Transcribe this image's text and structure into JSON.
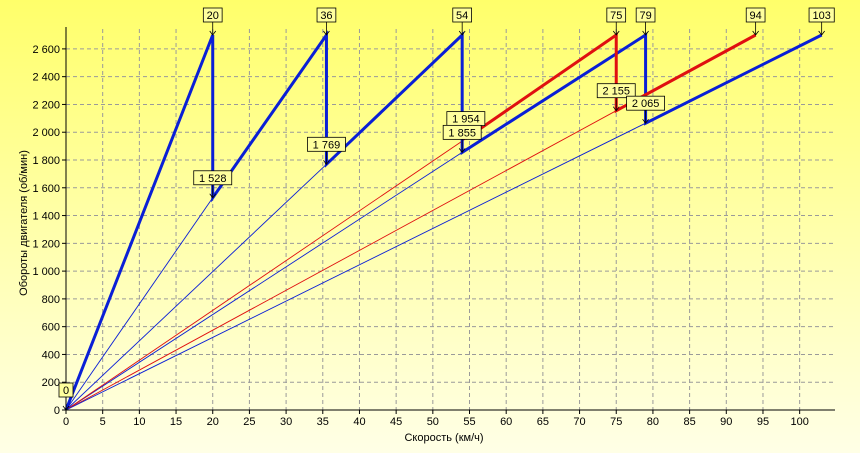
{
  "chart_data": {
    "type": "line",
    "xlabel": "Скорость (км/ч)",
    "ylabel": "Обороты двигателя (об/мин)",
    "xlim": [
      0,
      104
    ],
    "ylim": [
      0,
      2700
    ],
    "x_ticks": [
      "0",
      "5",
      "10",
      "15",
      "20",
      "25",
      "30",
      "35",
      "40",
      "45",
      "50",
      "55",
      "60",
      "65",
      "70",
      "75",
      "80",
      "85",
      "90",
      "95",
      "100"
    ],
    "y_ticks": [
      "0",
      "200",
      "400",
      "600",
      "800",
      "1 000",
      "1 200",
      "1 400",
      "1 600",
      "1 800",
      "2 000",
      "2 200",
      "2 400",
      "2 600"
    ],
    "grid": true,
    "colors": {
      "blue": "#0a1fd6",
      "red": "#e01010",
      "grid": "#9a9a9a",
      "callout_fill": "#ffff9e"
    },
    "thin_lines": [
      {
        "color": "blue",
        "points": [
          [
            0,
            0
          ],
          [
            20,
            1528
          ]
        ]
      },
      {
        "color": "blue",
        "points": [
          [
            0,
            0
          ],
          [
            35.5,
            1769
          ]
        ]
      },
      {
        "color": "blue",
        "points": [
          [
            0,
            0
          ],
          [
            54,
            1855
          ]
        ]
      },
      {
        "color": "red",
        "points": [
          [
            0,
            0
          ],
          [
            54.5,
            1954
          ]
        ]
      },
      {
        "color": "red",
        "points": [
          [
            0,
            0
          ],
          [
            75,
            2155
          ]
        ]
      },
      {
        "color": "blue",
        "points": [
          [
            0,
            0
          ],
          [
            79,
            2065
          ]
        ]
      }
    ],
    "series": [
      {
        "color": "blue",
        "values": [
          [
            0,
            0
          ],
          [
            20,
            2700
          ],
          [
            20,
            1528
          ],
          [
            35.5,
            2700
          ],
          [
            35.5,
            1769
          ],
          [
            54,
            2700
          ],
          [
            54,
            1855
          ],
          [
            79,
            2700
          ],
          [
            79,
            2065
          ],
          [
            103,
            2700
          ]
        ]
      },
      {
        "color": "red",
        "values": [
          [
            54.5,
            1954
          ],
          [
            75,
            2700
          ],
          [
            75,
            2155
          ],
          [
            94,
            2700
          ]
        ]
      }
    ],
    "callouts": [
      {
        "text": "0",
        "at": [
          0,
          0
        ],
        "anchor": "above"
      },
      {
        "text": "20",
        "at": [
          20,
          2700
        ],
        "anchor": "above"
      },
      {
        "text": "36",
        "at": [
          35.5,
          2700
        ],
        "anchor": "above"
      },
      {
        "text": "54",
        "at": [
          54,
          2700
        ],
        "anchor": "above"
      },
      {
        "text": "75",
        "at": [
          75,
          2700
        ],
        "anchor": "above"
      },
      {
        "text": "79",
        "at": [
          79,
          2700
        ],
        "anchor": "above"
      },
      {
        "text": "94",
        "at": [
          94,
          2700
        ],
        "anchor": "above"
      },
      {
        "text": "103",
        "at": [
          103,
          2700
        ],
        "anchor": "above"
      },
      {
        "text": "1 528",
        "at": [
          20,
          1528
        ],
        "anchor": "above"
      },
      {
        "text": "1 769",
        "at": [
          35.5,
          1769
        ],
        "anchor": "above"
      },
      {
        "text": "1 954",
        "at": [
          54.5,
          1954
        ],
        "anchor": "above"
      },
      {
        "text": "1 855",
        "at": [
          54,
          1855
        ],
        "anchor": "above"
      },
      {
        "text": "2 155",
        "at": [
          75,
          2155
        ],
        "anchor": "above"
      },
      {
        "text": "2 065",
        "at": [
          79,
          2065
        ],
        "anchor": "above"
      }
    ]
  }
}
